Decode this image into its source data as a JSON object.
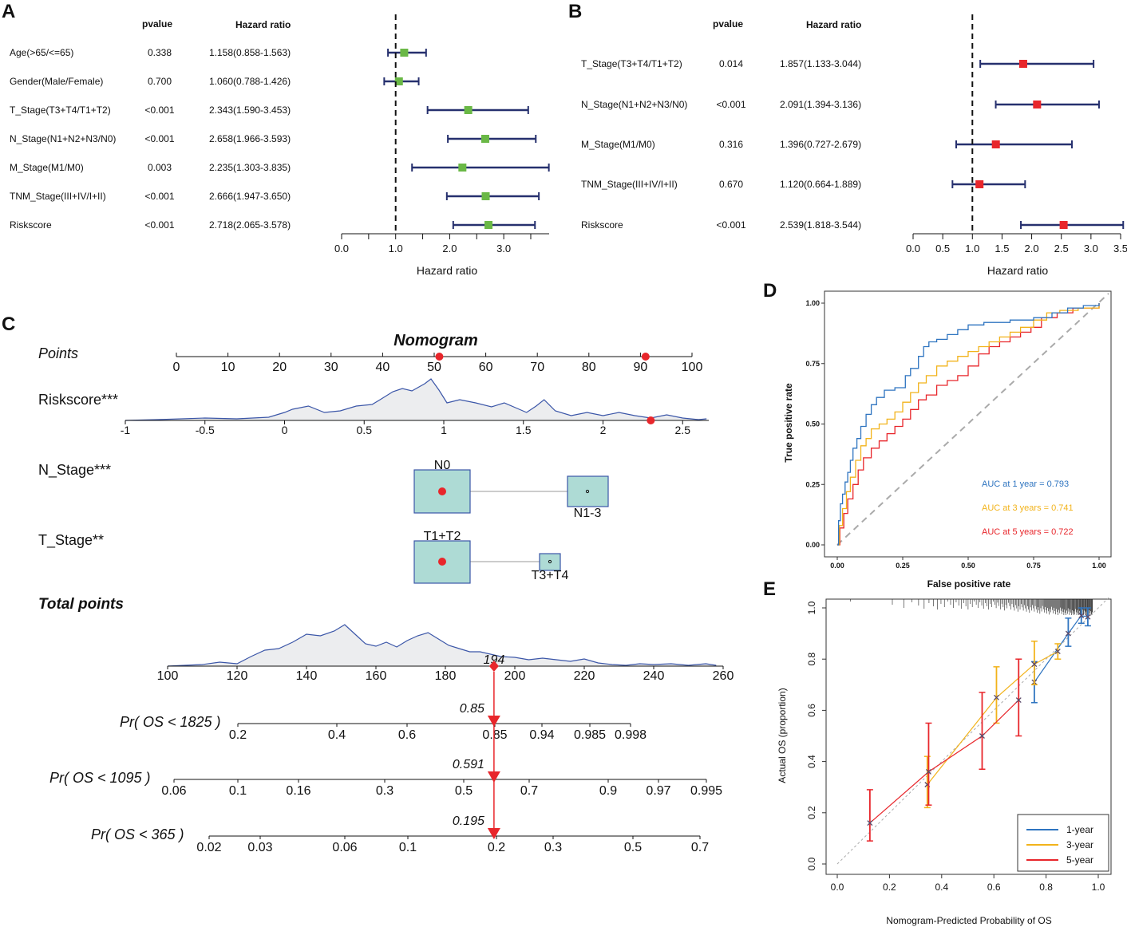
{
  "panels": {
    "A": {
      "label": "A",
      "pvalue_header": "pvalue",
      "hr_header": "Hazard ratio",
      "xlabel": "Hazard ratio",
      "ticks": [
        0.0,
        0.5,
        1.0,
        1.5,
        2.0,
        2.5,
        3.0,
        3.5
      ],
      "tick_labels": [
        "0.0",
        "",
        "1.0",
        "",
        "2.0",
        "",
        "3.0",
        ""
      ],
      "xlim": [
        0.0,
        3.84
      ],
      "ref": 1.0,
      "box_color": "#6ab846",
      "line_color": "#26306e",
      "rows": [
        {
          "label": "Age(>65/<=65)",
          "pvalue": "0.338",
          "hr_text": "1.158(0.858-1.563)",
          "hr": 1.158,
          "lo": 0.858,
          "hi": 1.563
        },
        {
          "label": "Gender(Male/Female)",
          "pvalue": "0.700",
          "hr_text": "1.060(0.788-1.426)",
          "hr": 1.06,
          "lo": 0.788,
          "hi": 1.426
        },
        {
          "label": "T_Stage(T3+T4/T1+T2)",
          "pvalue": "<0.001",
          "hr_text": "2.343(1.590-3.453)",
          "hr": 2.343,
          "lo": 1.59,
          "hi": 3.453
        },
        {
          "label": "N_Stage(N1+N2+N3/N0)",
          "pvalue": "<0.001",
          "hr_text": "2.658(1.966-3.593)",
          "hr": 2.658,
          "lo": 1.966,
          "hi": 3.593
        },
        {
          "label": "M_Stage(M1/M0)",
          "pvalue": "0.003",
          "hr_text": "2.235(1.303-3.835)",
          "hr": 2.235,
          "lo": 1.303,
          "hi": 3.835
        },
        {
          "label": "TNM_Stage(III+IV/I+II)",
          "pvalue": "<0.001",
          "hr_text": "2.666(1.947-3.650)",
          "hr": 2.666,
          "lo": 1.947,
          "hi": 3.65
        },
        {
          "label": "Riskscore",
          "pvalue": "<0.001",
          "hr_text": "2.718(2.065-3.578)",
          "hr": 2.718,
          "lo": 2.065,
          "hi": 3.578
        }
      ]
    },
    "B": {
      "label": "B",
      "pvalue_header": "pvalue",
      "hr_header": "Hazard ratio",
      "xlabel": "Hazard ratio",
      "ticks": [
        0.0,
        0.5,
        1.0,
        1.5,
        2.0,
        2.5,
        3.0,
        3.5
      ],
      "tick_labels": [
        "0.0",
        "0.5",
        "1.0",
        "1.5",
        "2.0",
        "2.5",
        "3.0",
        "3.5"
      ],
      "xlim": [
        0.0,
        3.5
      ],
      "ref": 1.0,
      "box_color": "#e8262b",
      "line_color": "#26306e",
      "rows": [
        {
          "label": "T_Stage(T3+T4/T1+T2)",
          "pvalue": "0.014",
          "hr_text": "1.857(1.133-3.044)",
          "hr": 1.857,
          "lo": 1.133,
          "hi": 3.044
        },
        {
          "label": "N_Stage(N1+N2+N3/N0)",
          "pvalue": "<0.001",
          "hr_text": "2.091(1.394-3.136)",
          "hr": 2.091,
          "lo": 1.394,
          "hi": 3.136
        },
        {
          "label": "M_Stage(M1/M0)",
          "pvalue": "0.316",
          "hr_text": "1.396(0.727-2.679)",
          "hr": 1.396,
          "lo": 0.727,
          "hi": 2.679
        },
        {
          "label": "TNM_Stage(III+IV/I+II)",
          "pvalue": "0.670",
          "hr_text": "1.120(0.664-1.889)",
          "hr": 1.12,
          "lo": 0.664,
          "hi": 1.889
        },
        {
          "label": "Riskscore",
          "pvalue": "<0.001",
          "hr_text": "2.539(1.818-3.544)",
          "hr": 2.539,
          "lo": 1.818,
          "hi": 3.544
        }
      ]
    },
    "C": {
      "label": "C",
      "title": "Nomogram",
      "points_label": "Points",
      "points_ticks": [
        "0",
        "10",
        "20",
        "30",
        "40",
        "50",
        "60",
        "70",
        "80",
        "90",
        "100"
      ],
      "points_markers": [
        51,
        91
      ],
      "riskscore_label": "Riskscore***",
      "riskscore_ticks": [
        "-1",
        "-0.5",
        "0",
        "0.5",
        "1",
        "1.5",
        "2",
        "2.5"
      ],
      "riskscore_marker": 2.3,
      "n_stage_label": "N_Stage***",
      "n_stage_levels": [
        "N0",
        "N1-3"
      ],
      "t_stage_label": "T_Stage**",
      "t_stage_levels": [
        "T1+T2",
        "T3+T4"
      ],
      "total_label": "Total points",
      "total_ticks": [
        "100",
        "120",
        "140",
        "160",
        "180",
        "200",
        "220",
        "240",
        "260"
      ],
      "total_value": 194,
      "total_value_label": "194",
      "pr_rows": [
        {
          "label": "Pr( OS < 1825 )",
          "ticks": [
            "0.2",
            "0.4",
            "0.6",
            "0.85",
            "0.94",
            "0.985",
            "0.998"
          ],
          "value_label": "0.85"
        },
        {
          "label": "Pr( OS < 1095 )",
          "ticks": [
            "0.06",
            "0.1",
            "0.16",
            "0.3",
            "0.5",
            "0.7",
            "0.9",
            "0.97",
            "0.995"
          ],
          "value_label": "0.591"
        },
        {
          "label": "Pr( OS < 365 )",
          "ticks": [
            "0.02",
            "0.03",
            "0.06",
            "0.1",
            "0.2",
            "0.3",
            "0.5",
            "0.7"
          ],
          "value_label": "0.195"
        }
      ],
      "accent": "#e8262b",
      "density_color": "#3b56a8",
      "box_fill": "#aedbd5"
    },
    "D": {
      "label": "D",
      "xlabel": "False positive rate",
      "ylabel": "True positive rate",
      "ticks": [
        "0.00",
        "0.25",
        "0.50",
        "0.75",
        "1.00"
      ],
      "series": [
        {
          "name": "AUC at 1 year  = 0.793",
          "color": "#2e74c0",
          "auc": 0.793,
          "points": [
            [
              0,
              0
            ],
            [
              0.005,
              0.1
            ],
            [
              0.012,
              0.17
            ],
            [
              0.02,
              0.21
            ],
            [
              0.03,
              0.26
            ],
            [
              0.04,
              0.3
            ],
            [
              0.05,
              0.35
            ],
            [
              0.06,
              0.4
            ],
            [
              0.075,
              0.44
            ],
            [
              0.09,
              0.49
            ],
            [
              0.11,
              0.54
            ],
            [
              0.13,
              0.58
            ],
            [
              0.15,
              0.61
            ],
            [
              0.18,
              0.64
            ],
            [
              0.22,
              0.65
            ],
            [
              0.26,
              0.7
            ],
            [
              0.28,
              0.73
            ],
            [
              0.31,
              0.78
            ],
            [
              0.33,
              0.82
            ],
            [
              0.35,
              0.84
            ],
            [
              0.38,
              0.85
            ],
            [
              0.42,
              0.87
            ],
            [
              0.46,
              0.89
            ],
            [
              0.5,
              0.91
            ],
            [
              0.56,
              0.92
            ],
            [
              0.62,
              0.92
            ],
            [
              0.66,
              0.93
            ],
            [
              0.7,
              0.93
            ],
            [
              0.75,
              0.94
            ],
            [
              0.82,
              0.96
            ],
            [
              0.88,
              0.98
            ],
            [
              0.94,
              0.99
            ],
            [
              1,
              1
            ]
          ]
        },
        {
          "name": "AUC at 3 years = 0.741",
          "color": "#f2b31b",
          "auc": 0.741,
          "points": [
            [
              0,
              0
            ],
            [
              0.008,
              0.08
            ],
            [
              0.02,
              0.15
            ],
            [
              0.035,
              0.22
            ],
            [
              0.05,
              0.28
            ],
            [
              0.07,
              0.35
            ],
            [
              0.09,
              0.41
            ],
            [
              0.11,
              0.44
            ],
            [
              0.13,
              0.48
            ],
            [
              0.16,
              0.5
            ],
            [
              0.19,
              0.52
            ],
            [
              0.22,
              0.55
            ],
            [
              0.25,
              0.59
            ],
            [
              0.28,
              0.63
            ],
            [
              0.31,
              0.67
            ],
            [
              0.34,
              0.7
            ],
            [
              0.38,
              0.74
            ],
            [
              0.42,
              0.76
            ],
            [
              0.46,
              0.78
            ],
            [
              0.5,
              0.8
            ],
            [
              0.54,
              0.82
            ],
            [
              0.58,
              0.84
            ],
            [
              0.62,
              0.86
            ],
            [
              0.66,
              0.88
            ],
            [
              0.7,
              0.9
            ],
            [
              0.75,
              0.93
            ],
            [
              0.8,
              0.96
            ],
            [
              0.85,
              0.97
            ],
            [
              0.92,
              0.98
            ],
            [
              1,
              1
            ]
          ]
        },
        {
          "name": "AUC at 5 years = 0.722",
          "color": "#e8262b",
          "auc": 0.722,
          "points": [
            [
              0,
              0
            ],
            [
              0.01,
              0.07
            ],
            [
              0.025,
              0.13
            ],
            [
              0.04,
              0.19
            ],
            [
              0.06,
              0.25
            ],
            [
              0.08,
              0.31
            ],
            [
              0.1,
              0.36
            ],
            [
              0.13,
              0.4
            ],
            [
              0.16,
              0.43
            ],
            [
              0.19,
              0.46
            ],
            [
              0.22,
              0.49
            ],
            [
              0.25,
              0.52
            ],
            [
              0.28,
              0.56
            ],
            [
              0.31,
              0.6
            ],
            [
              0.34,
              0.62
            ],
            [
              0.38,
              0.66
            ],
            [
              0.42,
              0.68
            ],
            [
              0.46,
              0.7
            ],
            [
              0.5,
              0.74
            ],
            [
              0.54,
              0.79
            ],
            [
              0.58,
              0.82
            ],
            [
              0.62,
              0.84
            ],
            [
              0.66,
              0.86
            ],
            [
              0.7,
              0.88
            ],
            [
              0.74,
              0.9
            ],
            [
              0.78,
              0.94
            ],
            [
              0.84,
              0.96
            ],
            [
              0.9,
              0.98
            ],
            [
              1,
              1
            ]
          ]
        }
      ]
    },
    "E": {
      "label": "E",
      "xlabel": "Nomogram-Predicted Probability of OS",
      "ylabel": "Actual OS (proportion)",
      "xticks": [
        "0.0",
        "0.2",
        "0.4",
        "0.6",
        "0.8",
        "1.0"
      ],
      "yticks": [
        "0.0",
        "0.2",
        "0.4",
        "0.6",
        "0.8",
        "1.0"
      ],
      "series": [
        {
          "name": "1-year",
          "color": "#2e74c0",
          "points": [
            [
              0.755,
              0.71,
              0.63,
              0.79
            ],
            [
              0.885,
              0.9,
              0.85,
              0.96
            ],
            [
              0.935,
              0.97,
              0.94,
              1.0
            ],
            [
              0.96,
              0.965,
              0.93,
              1.0
            ]
          ]
        },
        {
          "name": "3-year",
          "color": "#f2b31b",
          "points": [
            [
              0.345,
              0.31,
              0.22,
              0.42
            ],
            [
              0.61,
              0.65,
              0.55,
              0.77
            ],
            [
              0.755,
              0.78,
              0.7,
              0.87
            ],
            [
              0.845,
              0.83,
              0.8,
              0.86
            ]
          ]
        },
        {
          "name": "5-year",
          "color": "#e8262b",
          "points": [
            [
              0.125,
              0.16,
              0.09,
              0.29
            ],
            [
              0.35,
              0.36,
              0.23,
              0.55
            ],
            [
              0.555,
              0.5,
              0.37,
              0.67
            ],
            [
              0.695,
              0.64,
              0.5,
              0.8
            ]
          ]
        }
      ]
    }
  }
}
